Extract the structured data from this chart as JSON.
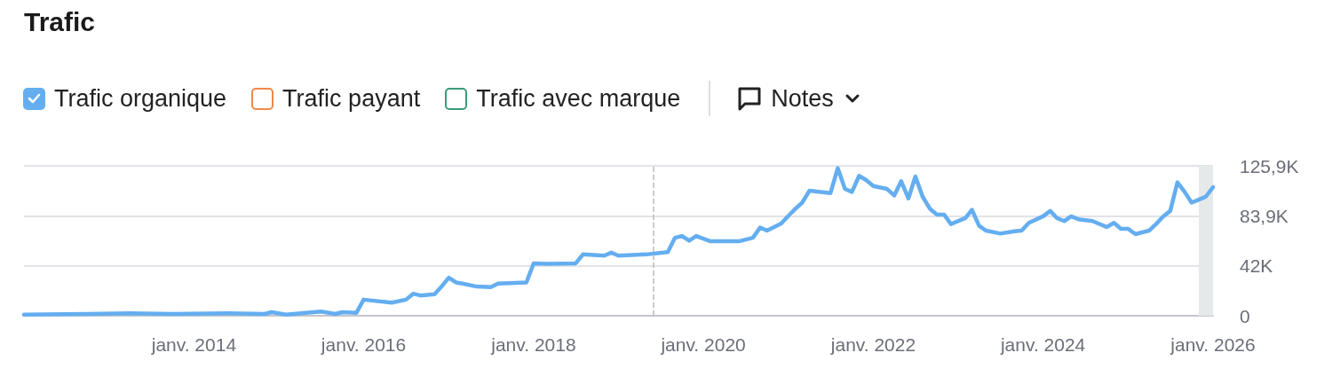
{
  "chart_data": {
    "type": "line",
    "title": "Trafic",
    "annotations": [
      "Notes"
    ],
    "x": [
      "2012-01",
      "2012-10",
      "2013-04",
      "2013-10",
      "2014-06",
      "2014-11",
      "2014-12",
      "2015-02",
      "2015-07",
      "2015-09",
      "2015-10",
      "2015-12",
      "2016-01",
      "2016-05",
      "2016-07",
      "2016-08",
      "2016-09",
      "2016-11",
      "2016-12",
      "2017-01",
      "2017-02",
      "2017-03",
      "2017-05",
      "2017-07",
      "2017-08",
      "2017-12",
      "2018-01",
      "2018-03",
      "2018-07",
      "2018-08",
      "2018-11",
      "2018-12",
      "2019-01",
      "2019-05",
      "2019-08",
      "2019-09",
      "2019-10",
      "2019-11",
      "2019-12",
      "2020-02",
      "2020-06",
      "2020-08",
      "2020-09",
      "2020-10",
      "2020-11",
      "2020-12",
      "2021-01",
      "2021-02",
      "2021-03",
      "2021-04",
      "2021-07",
      "2021-08",
      "2021-09",
      "2021-10",
      "2021-11",
      "2021-12",
      "2022-01",
      "2022-03",
      "2022-04",
      "2022-05",
      "2022-06",
      "2022-07",
      "2022-08",
      "2022-09",
      "2022-10",
      "2022-11",
      "2022-12",
      "2023-02",
      "2023-03",
      "2023-04",
      "2023-05",
      "2023-07",
      "2023-09",
      "2023-10",
      "2023-11",
      "2024-01",
      "2024-02",
      "2024-03",
      "2024-04",
      "2024-05",
      "2024-06",
      "2024-08",
      "2024-10",
      "2024-11",
      "2024-12",
      "2025-01",
      "2025-02",
      "2025-04",
      "2025-05",
      "2025-06",
      "2025-07",
      "2025-08",
      "2025-09",
      "2025-10",
      "2025-11",
      "2025-12",
      "2026-01"
    ],
    "series": [
      {
        "name": "Trafic organique",
        "color": "#64aef0",
        "values": [
          1000,
          1500,
          2000,
          1500,
          2000,
          1500,
          3000,
          1000,
          3500,
          1500,
          3000,
          2500,
          13500,
          11000,
          13500,
          18500,
          17000,
          18000,
          24500,
          32000,
          28000,
          27000,
          24500,
          24000,
          27000,
          28000,
          44000,
          43500,
          44000,
          51500,
          50500,
          53000,
          50500,
          51500,
          53500,
          65500,
          67000,
          63000,
          67000,
          62500,
          62500,
          65500,
          74000,
          71500,
          74500,
          77500,
          84000,
          90000,
          95000,
          105000,
          103000,
          124000,
          106500,
          104000,
          117500,
          114000,
          109000,
          106500,
          101000,
          113000,
          98500,
          117000,
          100000,
          90000,
          85000,
          85000,
          77000,
          82000,
          89000,
          75500,
          71500,
          69000,
          71000,
          71500,
          78000,
          83500,
          88000,
          82000,
          79500,
          83500,
          81000,
          79500,
          74500,
          78000,
          73000,
          73000,
          68500,
          71500,
          77000,
          83500,
          88000,
          112000,
          104000,
          95000,
          97500,
          100000,
          108000
        ]
      },
      {
        "name": "Trafic payant",
        "color": "#f0894a",
        "values": [
          null,
          null,
          null,
          null,
          null,
          null,
          null,
          null,
          null,
          null,
          null,
          null,
          null,
          null,
          null,
          null,
          null,
          null,
          null,
          null,
          null,
          null,
          null,
          null,
          null,
          null,
          null,
          null,
          null,
          null,
          null,
          null,
          null,
          null,
          null,
          null,
          null,
          null,
          null,
          null,
          null,
          null,
          null,
          null,
          null,
          null,
          null,
          null,
          null,
          null,
          null,
          null,
          null,
          null,
          null,
          null,
          null,
          null,
          null,
          null,
          null,
          null,
          null,
          null,
          null,
          null,
          null,
          null,
          null,
          null,
          null,
          null,
          null,
          null,
          null,
          null,
          null,
          null,
          null,
          null,
          null,
          null,
          null,
          null,
          null,
          null,
          null,
          null,
          null,
          null,
          null,
          null,
          null,
          null,
          null,
          null,
          null
        ]
      },
      {
        "name": "Trafic avec marque",
        "color": "#3a9a7a",
        "values": [
          null,
          null,
          null,
          null,
          null,
          null,
          null,
          null,
          null,
          null,
          null,
          null,
          null,
          null,
          null,
          null,
          null,
          null,
          null,
          null,
          null,
          null,
          null,
          null,
          null,
          null,
          null,
          null,
          null,
          null,
          null,
          null,
          null,
          null,
          null,
          null,
          null,
          null,
          null,
          null,
          null,
          null,
          null,
          null,
          null,
          null,
          null,
          null,
          null,
          null,
          null,
          null,
          null,
          null,
          null,
          null,
          null,
          null,
          null,
          null,
          null,
          null,
          null,
          null,
          null,
          null,
          null,
          null,
          null,
          null,
          null,
          null,
          null,
          null,
          null,
          null,
          null,
          null,
          null,
          null,
          null,
          null,
          null,
          null,
          null,
          null,
          null,
          null,
          null,
          null,
          null,
          null,
          null,
          null,
          null,
          null,
          null
        ]
      }
    ],
    "xlim": [
      "2012-01",
      "2026-01"
    ],
    "xticks": [
      {
        "value": "2014-01",
        "label": "janv. 2014"
      },
      {
        "value": "2016-01",
        "label": "janv. 2016"
      },
      {
        "value": "2018-01",
        "label": "janv. 2018"
      },
      {
        "value": "2020-01",
        "label": "janv. 2020"
      },
      {
        "value": "2022-01",
        "label": "janv. 2022"
      },
      {
        "value": "2024-01",
        "label": "janv. 2024"
      },
      {
        "value": "2026-01",
        "label": "janv. 2026"
      }
    ],
    "ylim": [
      0,
      125900
    ],
    "yticks": [
      0,
      {
        "value": 42000,
        "label": "42K"
      },
      {
        "value": 83900,
        "label": "83,9K"
      },
      {
        "value": 125900,
        "label": "125,9K"
      }
    ],
    "ref_lines": [
      {
        "axis": "x",
        "value": "2019-06",
        "label": null,
        "color": "#bbbbbb",
        "line_style": "dashed"
      }
    ],
    "bands": [
      {
        "axis": "x",
        "from": "2025-11",
        "to": "2026-01",
        "label": null,
        "color": "#e6e9e9"
      }
    ],
    "grid": "y",
    "legend": "top left",
    "marker": "none",
    "line_style": "solid"
  }
}
